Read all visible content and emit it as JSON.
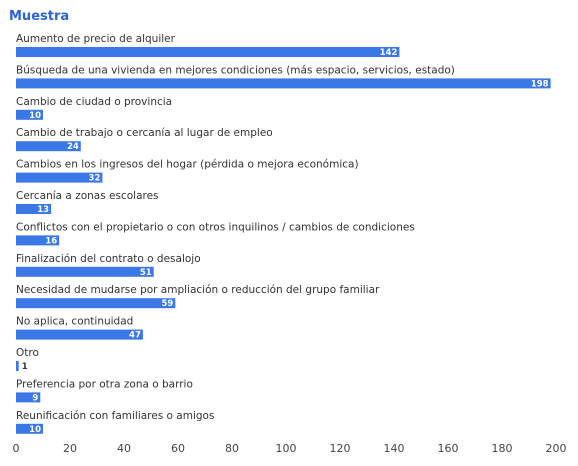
{
  "title": "Muestra",
  "chart_data": {
    "type": "bar",
    "orientation": "horizontal",
    "title": "Muestra",
    "categories": [
      "Aumento de precio de alquiler",
      "Búsqueda de una vivienda en mejores condiciones (más espacio, servicios, estado)",
      "Cambio de ciudad o provincia",
      "Cambio de trabajo o cercanía al lugar de empleo",
      "Cambios en los ingresos del hogar (pérdida o mejora económica)",
      "Cercanía a zonas escolares",
      "Conflictos con el propietario o con otros inquilinos / cambios de condiciones",
      "Finalización del contrato o desalojo",
      "Necesidad de mudarse por ampliación o reducción del grupo familiar",
      "No aplica, continuidad",
      "Otro",
      "Preferencia por otra zona o barrio",
      "Reunificación con familiares o amigos"
    ],
    "values": [
      142,
      198,
      10,
      24,
      32,
      13,
      16,
      51,
      59,
      47,
      1,
      9,
      10
    ],
    "xlim": [
      0,
      200
    ],
    "xticks": [
      0,
      20,
      40,
      60,
      80,
      100,
      120,
      140,
      160,
      180,
      200
    ],
    "bar_color": "#3b78e7",
    "grid": false,
    "legend": "none"
  }
}
